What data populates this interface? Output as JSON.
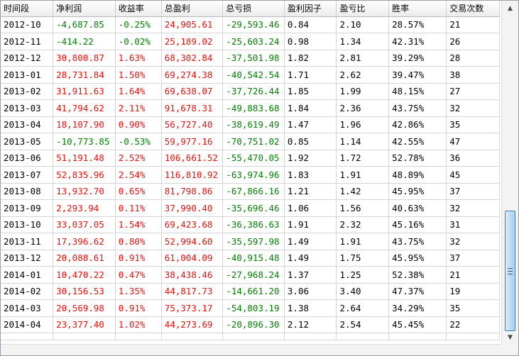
{
  "table": {
    "columns": [
      "时间段",
      "净利润",
      "收益率",
      "总盈利",
      "总亏损",
      "盈利因子",
      "盈亏比",
      "胜率",
      "交易次数"
    ],
    "rows": [
      {
        "period": "2012-10",
        "net_profit": "-4,687.85",
        "return_rate": "-0.25%",
        "total_profit": "24,905.61",
        "total_loss": "-29,593.46",
        "profit_factor": "0.84",
        "pl_ratio": "2.10",
        "win_rate": "28.57%",
        "trades": "21",
        "sign": "neg"
      },
      {
        "period": "2012-11",
        "net_profit": "-414.22",
        "return_rate": "-0.02%",
        "total_profit": "25,189.02",
        "total_loss": "-25,603.24",
        "profit_factor": "0.98",
        "pl_ratio": "1.34",
        "win_rate": "42.31%",
        "trades": "26",
        "sign": "neg"
      },
      {
        "period": "2012-12",
        "net_profit": "30,800.87",
        "return_rate": "1.63%",
        "total_profit": "68,302.84",
        "total_loss": "-37,501.98",
        "profit_factor": "1.82",
        "pl_ratio": "2.81",
        "win_rate": "39.29%",
        "trades": "28",
        "sign": "pos"
      },
      {
        "period": "2013-01",
        "net_profit": "28,731.84",
        "return_rate": "1.50%",
        "total_profit": "69,274.38",
        "total_loss": "-40,542.54",
        "profit_factor": "1.71",
        "pl_ratio": "2.62",
        "win_rate": "39.47%",
        "trades": "38",
        "sign": "pos"
      },
      {
        "period": "2013-02",
        "net_profit": "31,911.63",
        "return_rate": "1.64%",
        "total_profit": "69,638.07",
        "total_loss": "-37,726.44",
        "profit_factor": "1.85",
        "pl_ratio": "1.99",
        "win_rate": "48.15%",
        "trades": "27",
        "sign": "pos"
      },
      {
        "period": "2013-03",
        "net_profit": "41,794.62",
        "return_rate": "2.11%",
        "total_profit": "91,678.31",
        "total_loss": "-49,883.68",
        "profit_factor": "1.84",
        "pl_ratio": "2.36",
        "win_rate": "43.75%",
        "trades": "32",
        "sign": "pos"
      },
      {
        "period": "2013-04",
        "net_profit": "18,107.90",
        "return_rate": "0.90%",
        "total_profit": "56,727.40",
        "total_loss": "-38,619.49",
        "profit_factor": "1.47",
        "pl_ratio": "1.96",
        "win_rate": "42.86%",
        "trades": "35",
        "sign": "pos"
      },
      {
        "period": "2013-05",
        "net_profit": "-10,773.85",
        "return_rate": "-0.53%",
        "total_profit": "59,977.16",
        "total_loss": "-70,751.02",
        "profit_factor": "0.85",
        "pl_ratio": "1.14",
        "win_rate": "42.55%",
        "trades": "47",
        "sign": "neg"
      },
      {
        "period": "2013-06",
        "net_profit": "51,191.48",
        "return_rate": "2.52%",
        "total_profit": "106,661.52",
        "total_loss": "-55,470.05",
        "profit_factor": "1.92",
        "pl_ratio": "1.72",
        "win_rate": "52.78%",
        "trades": "36",
        "sign": "pos"
      },
      {
        "period": "2013-07",
        "net_profit": "52,835.96",
        "return_rate": "2.54%",
        "total_profit": "116,810.92",
        "total_loss": "-63,974.96",
        "profit_factor": "1.83",
        "pl_ratio": "1.91",
        "win_rate": "48.89%",
        "trades": "45",
        "sign": "pos"
      },
      {
        "period": "2013-08",
        "net_profit": "13,932.70",
        "return_rate": "0.65%",
        "total_profit": "81,798.86",
        "total_loss": "-67,866.16",
        "profit_factor": "1.21",
        "pl_ratio": "1.42",
        "win_rate": "45.95%",
        "trades": "37",
        "sign": "pos"
      },
      {
        "period": "2013-09",
        "net_profit": "2,293.94",
        "return_rate": "0.11%",
        "total_profit": "37,990.40",
        "total_loss": "-35,696.46",
        "profit_factor": "1.06",
        "pl_ratio": "1.56",
        "win_rate": "40.63%",
        "trades": "32",
        "sign": "pos"
      },
      {
        "period": "2013-10",
        "net_profit": "33,037.05",
        "return_rate": "1.54%",
        "total_profit": "69,423.68",
        "total_loss": "-36,386.63",
        "profit_factor": "1.91",
        "pl_ratio": "2.32",
        "win_rate": "45.16%",
        "trades": "31",
        "sign": "pos"
      },
      {
        "period": "2013-11",
        "net_profit": "17,396.62",
        "return_rate": "0.80%",
        "total_profit": "52,994.60",
        "total_loss": "-35,597.98",
        "profit_factor": "1.49",
        "pl_ratio": "1.91",
        "win_rate": "43.75%",
        "trades": "32",
        "sign": "pos"
      },
      {
        "period": "2013-12",
        "net_profit": "20,088.61",
        "return_rate": "0.91%",
        "total_profit": "61,004.09",
        "total_loss": "-40,915.48",
        "profit_factor": "1.49",
        "pl_ratio": "1.75",
        "win_rate": "45.95%",
        "trades": "37",
        "sign": "pos"
      },
      {
        "period": "2014-01",
        "net_profit": "10,470.22",
        "return_rate": "0.47%",
        "total_profit": "38,438.46",
        "total_loss": "-27,968.24",
        "profit_factor": "1.37",
        "pl_ratio": "1.25",
        "win_rate": "52.38%",
        "trades": "21",
        "sign": "pos"
      },
      {
        "period": "2014-02",
        "net_profit": "30,156.53",
        "return_rate": "1.35%",
        "total_profit": "44,817.73",
        "total_loss": "-14,661.20",
        "profit_factor": "3.06",
        "pl_ratio": "3.40",
        "win_rate": "47.37%",
        "trades": "19",
        "sign": "pos"
      },
      {
        "period": "2014-03",
        "net_profit": "20,569.98",
        "return_rate": "0.91%",
        "total_profit": "75,373.17",
        "total_loss": "-54,803.19",
        "profit_factor": "1.38",
        "pl_ratio": "2.64",
        "win_rate": "34.29%",
        "trades": "35",
        "sign": "pos"
      },
      {
        "period": "2014-04",
        "net_profit": "23,377.40",
        "return_rate": "1.02%",
        "total_profit": "44,273.69",
        "total_loss": "-20,896.30",
        "profit_factor": "2.12",
        "pl_ratio": "2.54",
        "win_rate": "45.45%",
        "trades": "22",
        "sign": "pos"
      }
    ]
  },
  "colors": {
    "positive": "#e8110c",
    "negative": "#008000",
    "loss": "#008000",
    "profit": "#e8110c",
    "neutral": "#000000"
  },
  "scrollbar": {
    "up_icon": "up-arrow-icon",
    "down_icon": "down-arrow-icon",
    "up_glyph": "▲",
    "down_glyph": "▼"
  }
}
